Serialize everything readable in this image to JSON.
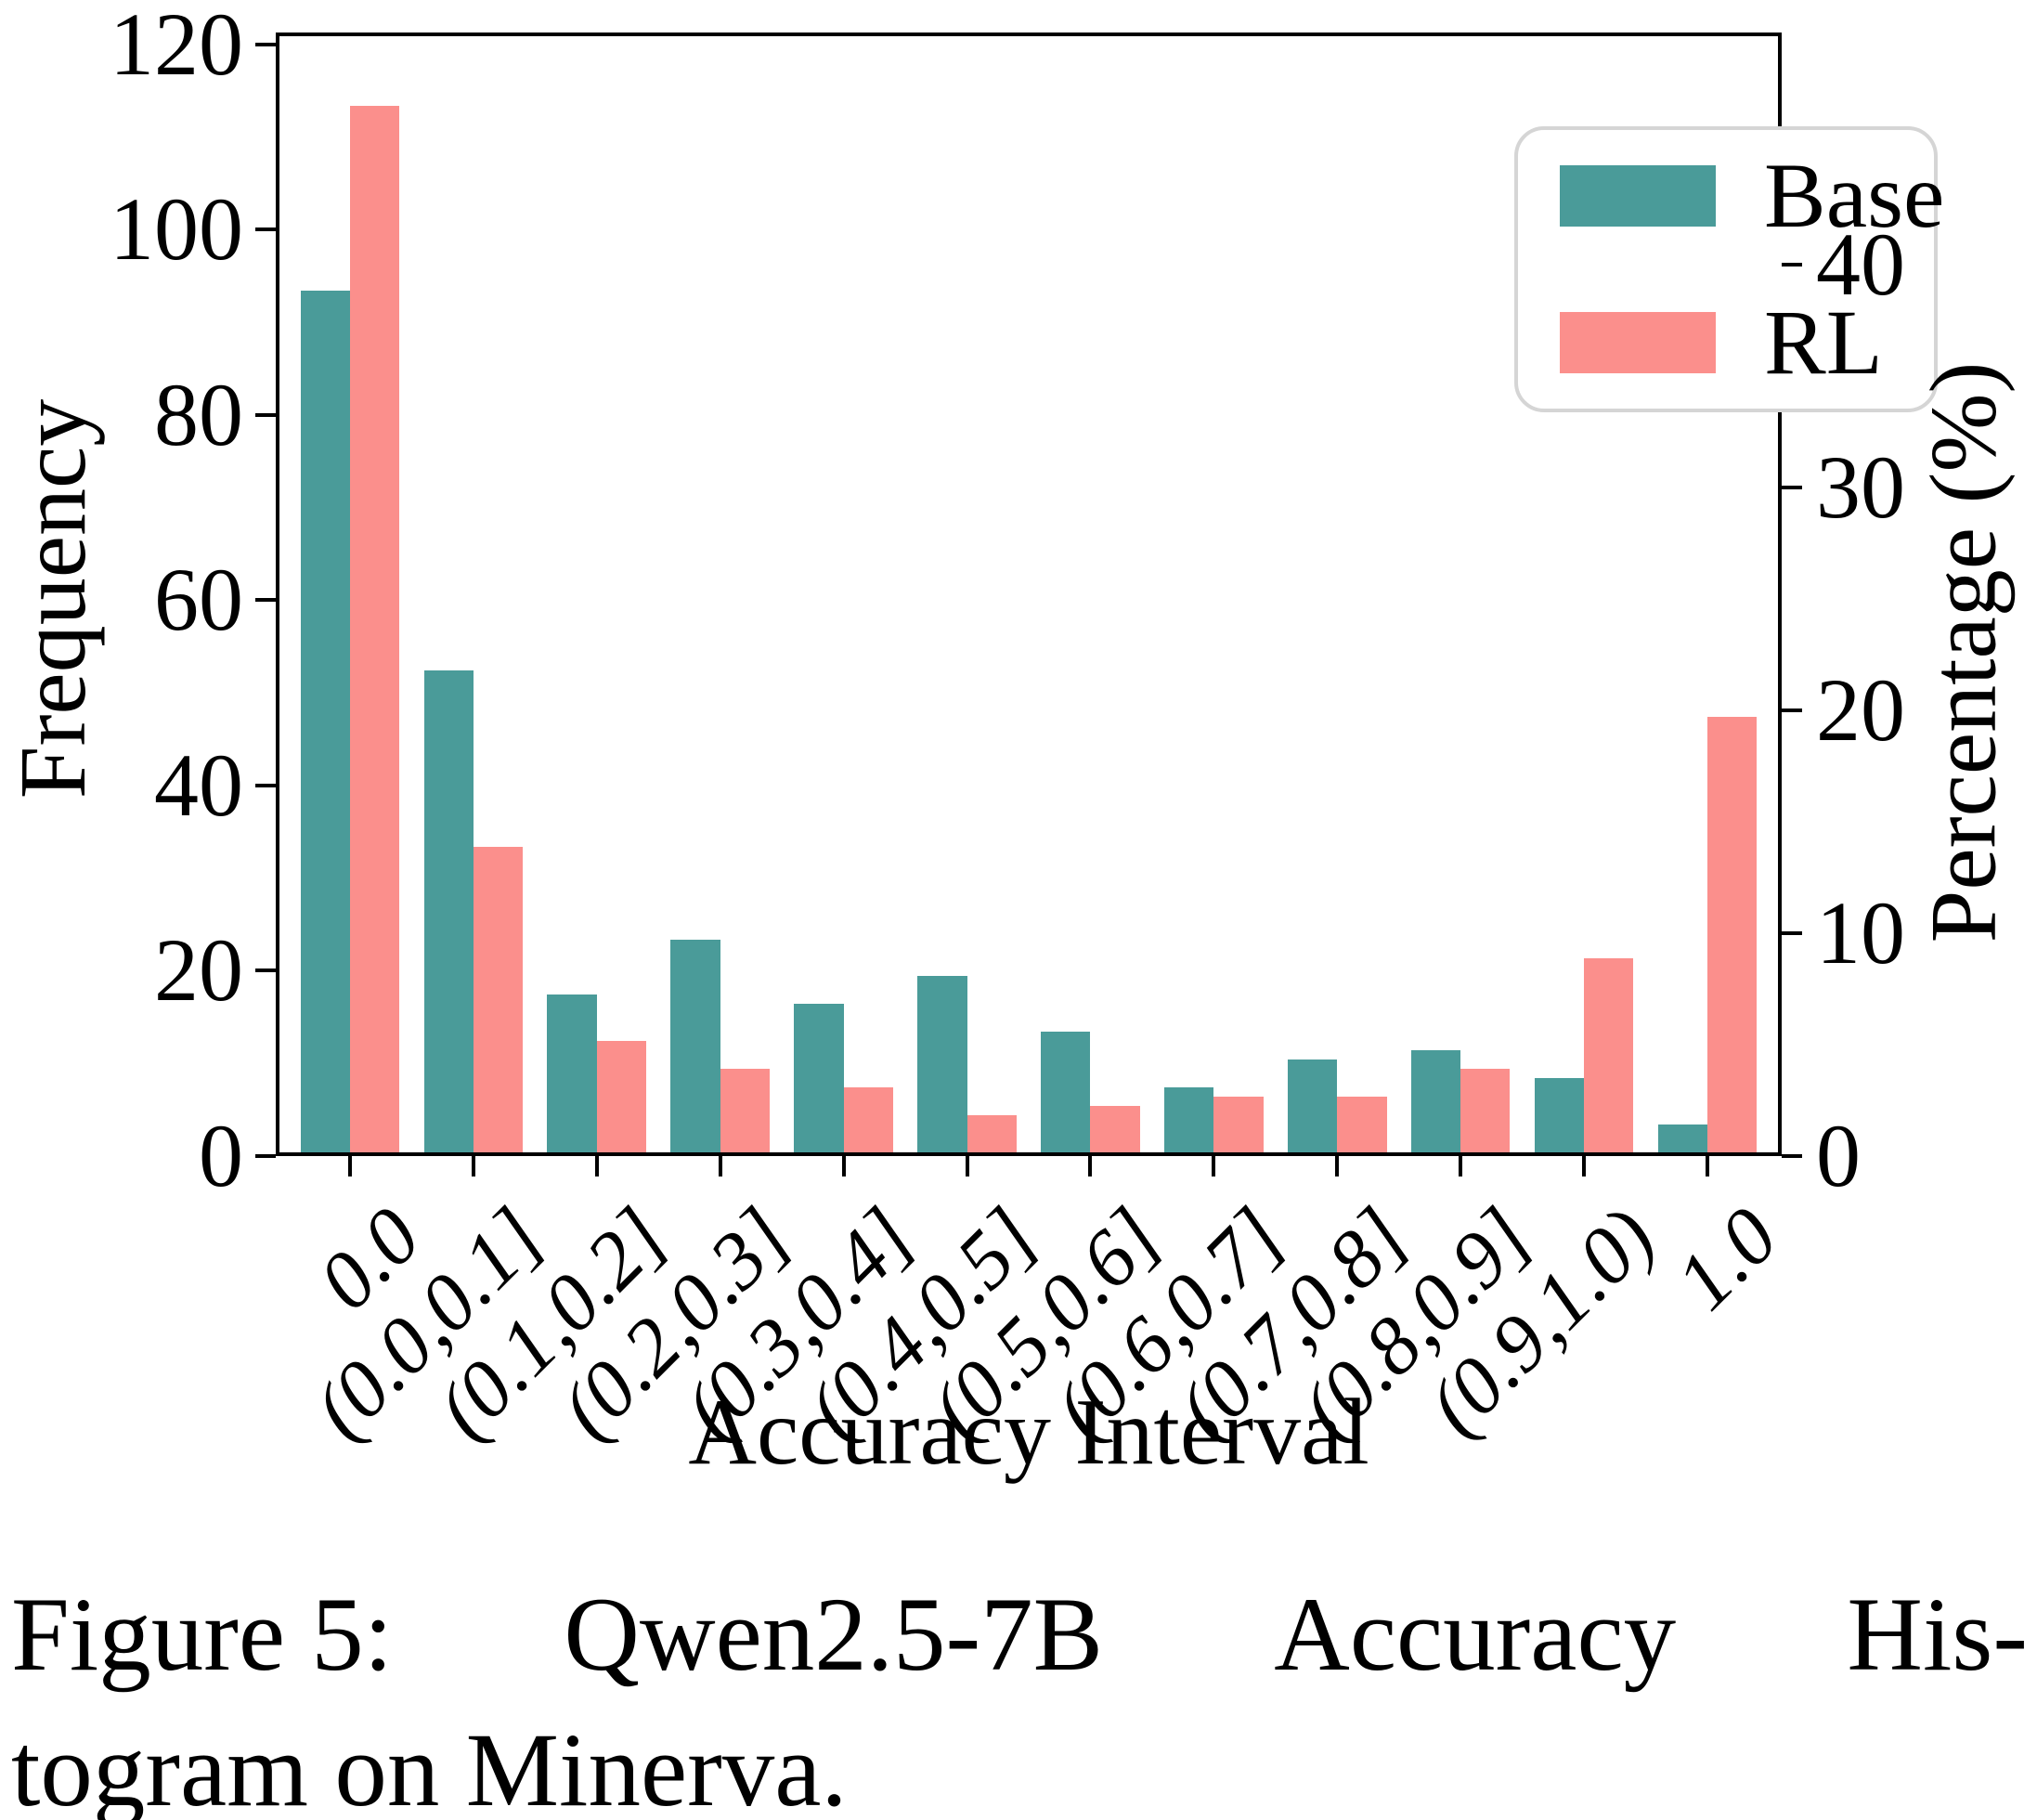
{
  "chart_data": {
    "type": "bar",
    "title": "",
    "categories": [
      "0.0",
      "(0.0,0.1]",
      "(0.1,0.2]",
      "(0.2,0.3]",
      "(0.3,0.4]",
      "(0.4,0.5]",
      "(0.5,0.6]",
      "(0.6,0.7]",
      "(0.7,0.8]",
      "(0.8,0.9]",
      "(0.9,1.0)",
      "1.0"
    ],
    "series": [
      {
        "name": "Base",
        "color": "#4a9b99",
        "values": [
          93,
          52,
          17,
          23,
          16,
          19,
          13,
          7,
          10,
          11,
          8,
          3
        ]
      },
      {
        "name": "RL",
        "color": "#fb8f8c",
        "values": [
          113,
          33,
          12,
          9,
          7,
          4,
          5,
          6,
          6,
          9,
          21,
          47
        ]
      }
    ],
    "xlabel": "Accuracy Interval",
    "ylabel_left": "Frequency",
    "ylabel_right": "Percentage (%)",
    "y_left_ticks": [
      0,
      20,
      40,
      60,
      80,
      100,
      120
    ],
    "y_left_max": 121.3,
    "y_right_ticks": [
      0,
      10,
      20,
      30,
      40
    ],
    "freq_per_percent": 2.406,
    "bar_group_width": 0.8,
    "grid": false,
    "legend": {
      "position": "upper right",
      "entries": [
        "Base",
        "RL"
      ]
    }
  },
  "legend": {
    "base_label": "Base",
    "rl_label": "RL"
  },
  "axes": {
    "xlabel": "Accuracy Interval",
    "ylabel_left": "Frequency",
    "ylabel_right": "Percentage (%)"
  },
  "caption": {
    "line1_words": [
      "Figure 5:",
      "Qwen2.5-7B",
      "Accuracy",
      "His-"
    ],
    "line2": "togram on Minerva."
  },
  "colors": {
    "base_bar": "#4a9b99",
    "rl_bar": "#fb8f8c",
    "axis": "#000000",
    "legend_border": "#d5d5d5",
    "background": "#ffffff"
  }
}
